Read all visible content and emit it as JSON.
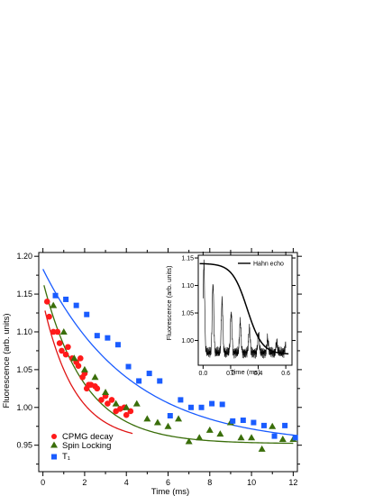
{
  "chart_data": [
    {
      "type": "scatter",
      "xlabel": "Time (ms)",
      "ylabel": "Fluorescence (arb. units)",
      "xlim": [
        -0.2,
        12.2
      ],
      "ylim": [
        0.915,
        1.205
      ],
      "xticks": [
        "0",
        "2",
        "4",
        "6",
        "8",
        "10",
        "12"
      ],
      "yticks": [
        "0.95",
        "1.00",
        "1.05",
        "1.10",
        "1.15",
        "1.20"
      ],
      "legend_position": "bottom-left",
      "series": [
        {
          "name": "CPMG decay",
          "marker": "circle",
          "color": "#ff1a1a",
          "points": [
            [
              0.2,
              1.14
            ],
            [
              0.3,
              1.12
            ],
            [
              0.5,
              1.1
            ],
            [
              0.7,
              1.1
            ],
            [
              0.8,
              1.085
            ],
            [
              0.9,
              1.075
            ],
            [
              1.1,
              1.07
            ],
            [
              1.2,
              1.08
            ],
            [
              1.4,
              1.065
            ],
            [
              1.6,
              1.06
            ],
            [
              1.7,
              1.055
            ],
            [
              1.8,
              1.065
            ],
            [
              1.9,
              1.04
            ],
            [
              2.0,
              1.045
            ],
            [
              2.1,
              1.025
            ],
            [
              2.2,
              1.03
            ],
            [
              2.3,
              1.03
            ],
            [
              2.5,
              1.028
            ],
            [
              2.6,
              1.025
            ],
            [
              2.8,
              1.01
            ],
            [
              3.0,
              1.015
            ],
            [
              3.1,
              1.005
            ],
            [
              3.3,
              1.01
            ],
            [
              3.5,
              0.995
            ],
            [
              3.7,
              0.998
            ],
            [
              3.9,
              1.0
            ],
            [
              4.0,
              0.99
            ],
            [
              4.2,
              0.995
            ]
          ]
        },
        {
          "name": "Spin Locking",
          "marker": "triangle",
          "color": "#3a6e0a",
          "points": [
            [
              0.5,
              1.135
            ],
            [
              1.0,
              1.1
            ],
            [
              1.5,
              1.065
            ],
            [
              2.0,
              1.05
            ],
            [
              2.5,
              1.04
            ],
            [
              3.0,
              1.02
            ],
            [
              3.5,
              1.005
            ],
            [
              4.0,
              1.0
            ],
            [
              4.5,
              1.005
            ],
            [
              5.0,
              0.985
            ],
            [
              5.5,
              0.98
            ],
            [
              6.0,
              0.975
            ],
            [
              6.5,
              0.985
            ],
            [
              7.0,
              0.955
            ],
            [
              7.5,
              0.96
            ],
            [
              8.0,
              0.97
            ],
            [
              8.5,
              0.965
            ],
            [
              9.0,
              0.98
            ],
            [
              9.5,
              0.96
            ],
            [
              10.0,
              0.96
            ],
            [
              10.5,
              0.945
            ],
            [
              11.0,
              0.975
            ],
            [
              11.5,
              0.958
            ],
            [
              12.0,
              0.958
            ]
          ]
        },
        {
          "name": "T₁",
          "marker": "square",
          "color": "#1a5cff",
          "points": [
            [
              0.6,
              1.148
            ],
            [
              1.1,
              1.143
            ],
            [
              1.6,
              1.135
            ],
            [
              2.1,
              1.123
            ],
            [
              2.6,
              1.095
            ],
            [
              3.1,
              1.092
            ],
            [
              3.6,
              1.083
            ],
            [
              4.1,
              1.054
            ],
            [
              4.6,
              1.035
            ],
            [
              5.1,
              1.045
            ],
            [
              5.6,
              1.035
            ],
            [
              6.1,
              0.989
            ],
            [
              6.6,
              1.01
            ],
            [
              7.1,
              1.0
            ],
            [
              7.6,
              1.0
            ],
            [
              8.1,
              1.005
            ],
            [
              8.6,
              1.004
            ],
            [
              9.1,
              0.982
            ],
            [
              9.6,
              0.983
            ],
            [
              10.1,
              0.98
            ],
            [
              10.6,
              0.976
            ],
            [
              11.1,
              0.962
            ],
            [
              11.6,
              0.976
            ],
            [
              12.1,
              0.96
            ]
          ]
        }
      ],
      "fits": [
        {
          "series": "CPMG decay",
          "color": "#e01515",
          "x_range": [
            0.1,
            4.3
          ],
          "a": 0.185,
          "tau": 1.5,
          "c": 0.955
        },
        {
          "series": "Spin Locking",
          "color": "#3a6e0a",
          "x_range": [
            0.05,
            12.0
          ],
          "a": 0.215,
          "tau": 2.0,
          "c": 0.952
        },
        {
          "series": "T₁",
          "color": "#1a5cff",
          "x_range": [
            0.0,
            12.2
          ],
          "a": 0.233,
          "tau": 4.2,
          "c": 0.95
        }
      ]
    },
    {
      "type": "line",
      "xlabel": "Time (ms)",
      "ylabel": "Fluorescence (arb. units)",
      "xlim": [
        -0.035,
        0.645
      ],
      "ylim": [
        0.955,
        1.155
      ],
      "xticks": [
        "0.0",
        "0.2",
        "0.4",
        "0.6"
      ],
      "yticks": [
        "1.00",
        "1.05",
        "1.10",
        "1.15"
      ],
      "legend_position": "top-right",
      "series": [
        {
          "name": "Hahn echo",
          "color": "#000000",
          "style": "thick",
          "kind": "envelope",
          "plateau": 1.14,
          "t_decay": 0.32,
          "width": 0.12,
          "floor": 0.975
        },
        {
          "name": "",
          "color": "#000000",
          "style": "thin",
          "kind": "oscillation",
          "period": 0.066,
          "envelope_tau": 0.25,
          "baseline": 0.978
        }
      ]
    }
  ]
}
